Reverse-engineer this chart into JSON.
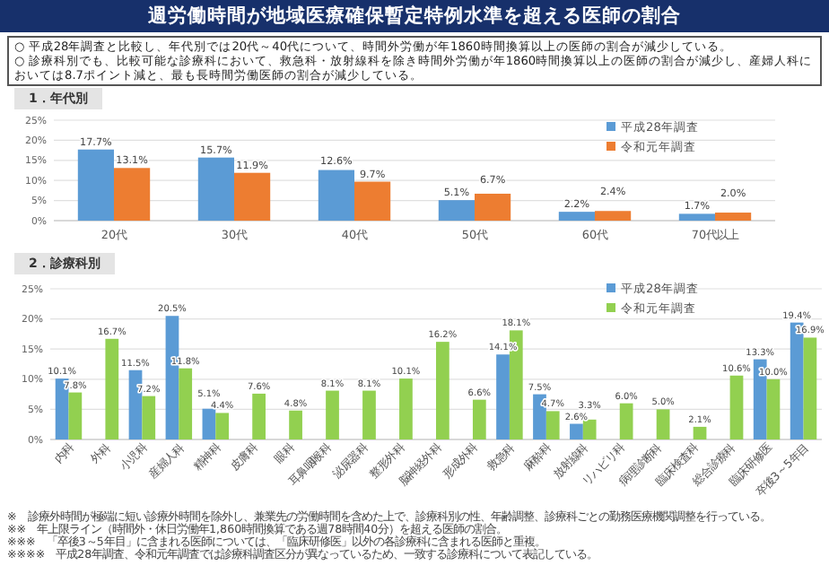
{
  "chart_data": [
    {
      "type": "bar",
      "title": "週労働時間が地域医療確保暫定特例水準を超える医師の割合",
      "subtitle": "1．年代別",
      "annotations": [
        "○ 平成28年調査と比較し、年代別では20代～40代について、時間外労働が年1860時間換算以上の医師の割合が減少している。",
        "○ 診療科別でも、比較可能な診療科において、救急科・放射線科を除き時間外労働が年1860時間換算以上の医師の割合が減少し、産婦人科においては8.7ポイント減と、最も長時間労働医師の割合が減少している。"
      ],
      "categories": [
        "20代",
        "30代",
        "40代",
        "50代",
        "60代",
        "70代以上"
      ],
      "series": [
        {
          "name": "平成28年調査",
          "color": "#5b9bd5",
          "values": [
            17.7,
            15.7,
            12.6,
            5.1,
            2.2,
            1.7
          ],
          "value_labels": [
            "17.7%",
            "15.7%",
            "12.6%",
            "5.1%",
            "2.2%",
            "1.7%"
          ]
        },
        {
          "name": "令和元年調査",
          "color": "#ed7d31",
          "values": [
            13.1,
            11.9,
            9.7,
            6.7,
            2.4,
            2.0
          ],
          "value_labels": [
            "13.1%",
            "11.9%",
            "9.7%",
            "6.7%",
            "2.4%",
            "2.0%"
          ]
        }
      ],
      "ylim": [
        0,
        25
      ],
      "yticks": [
        {
          "value": 0,
          "label": "0%"
        },
        {
          "value": 5,
          "label": "5%"
        },
        {
          "value": 10,
          "label": "10%"
        },
        {
          "value": 15,
          "label": "15%"
        },
        {
          "value": 20,
          "label": "20%"
        },
        {
          "value": 25,
          "label": "25%"
        }
      ],
      "grid": "y",
      "legend": "top right"
    },
    {
      "type": "bar",
      "title": "2．診療科別",
      "annotations": [
        "※　診療外時間が極端に短い診療外時間を除外し、兼業先の労働時間を含めた上で、診療科別の性、年齢調整、診療科ごとの勤務医療機関調整を行っている。",
        "※※　年上限ライン（時間外・休日労働年1,860時間換算である週78時間40分）を超える医師の割合。",
        "※※※　「卒後3～5年目」に含まれる医師については、「臨床研修医」以外の各診療科に含まれる医師と重複。",
        "※※※※　平成28年調査、令和元年調査では診療科調査区分が異なっているため、一致する診療科について表記している。"
      ],
      "categories": [
        "内科",
        "外科",
        "小児科",
        "産婦人科",
        "精神科",
        "皮膚科",
        "眼科",
        "耳鼻咽喉科",
        "泌尿器科",
        "整形外科",
        "脳神経外科",
        "形成外科",
        "救急科",
        "麻酔科",
        "放射線科",
        "リハビリ科",
        "病理診断科",
        "臨床検査科",
        "総合診療科",
        "臨床研修医",
        "卒後3～5年目"
      ],
      "series": [
        {
          "name": "平成28年調査",
          "color": "#5b9bd5",
          "values": [
            10.1,
            null,
            11.5,
            20.5,
            5.1,
            null,
            null,
            null,
            null,
            null,
            null,
            null,
            14.1,
            7.5,
            2.6,
            null,
            null,
            null,
            null,
            13.3,
            19.4
          ],
          "value_labels": [
            "10.1%",
            null,
            "11.5%",
            "20.5%",
            "5.1%",
            null,
            null,
            null,
            null,
            null,
            null,
            null,
            "14.1%",
            "7.5%",
            "2.6%",
            null,
            null,
            null,
            null,
            "13.3%",
            "19.4%"
          ]
        },
        {
          "name": "令和元年調査",
          "color": "#92d050",
          "values": [
            7.8,
            16.7,
            7.2,
            11.8,
            4.4,
            7.6,
            4.8,
            8.1,
            8.1,
            10.1,
            16.2,
            6.6,
            18.1,
            4.7,
            3.3,
            6.0,
            5.0,
            2.1,
            10.6,
            10.0,
            16.9
          ],
          "value_labels": [
            "7.8%",
            "16.7%",
            "7.2%",
            "11.8%",
            "4.4%",
            "7.6%",
            "4.8%",
            "8.1%",
            "8.1%",
            "10.1%",
            "16.2%",
            "6.6%",
            "18.1%",
            "4.7%",
            "3.3%",
            "6.0%",
            "5.0%",
            "2.1%",
            "10.6%",
            "10.0%",
            "16.9%"
          ]
        }
      ],
      "ylim": [
        0,
        25
      ],
      "yticks": [
        {
          "value": 0,
          "label": "0%"
        },
        {
          "value": 5,
          "label": "5%"
        },
        {
          "value": 10,
          "label": "10%"
        },
        {
          "value": 15,
          "label": "15%"
        },
        {
          "value": 20,
          "label": "20%"
        },
        {
          "value": 25,
          "label": "25%"
        }
      ],
      "grid": "y",
      "legend": "top right"
    }
  ]
}
